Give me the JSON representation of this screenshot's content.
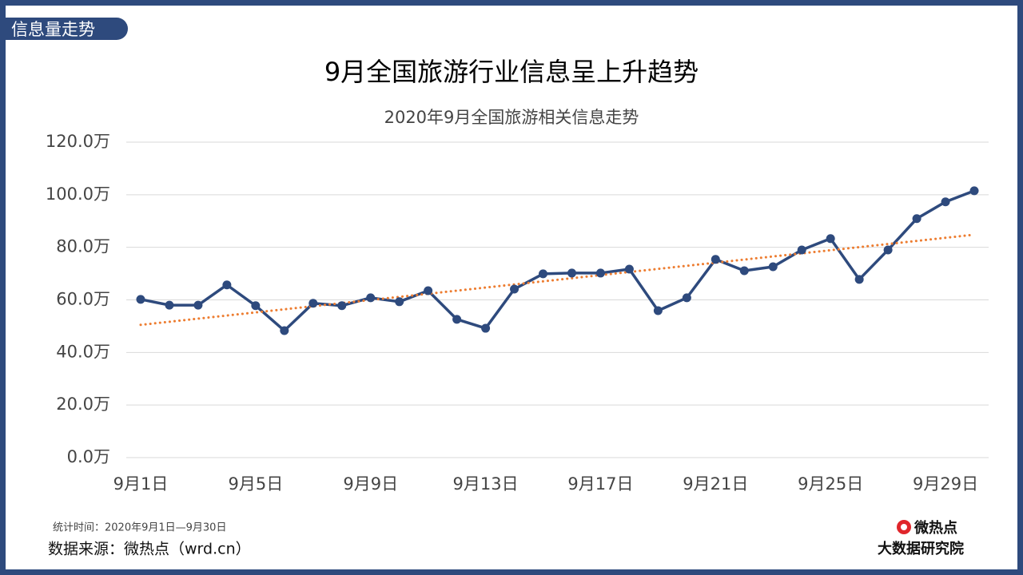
{
  "badge": "信息量走势",
  "footer": {
    "period": "统计时间：2020年9月1日—9月30日",
    "source": "数据来源：微热点（wrd.cn）",
    "logo": "微热点",
    "org": "大数据研究院"
  },
  "chart_data": {
    "type": "line",
    "title": "9月全国旅游行业信息呈上升趋势",
    "subtitle": "2020年9月全国旅游相关信息走势",
    "categories": [
      "9月1日",
      null,
      null,
      null,
      "9月5日",
      null,
      null,
      null,
      "9月9日",
      null,
      null,
      null,
      "9月13日",
      null,
      null,
      null,
      "9月17日",
      null,
      null,
      null,
      "9月21日",
      null,
      null,
      null,
      "9月25日",
      null,
      null,
      null,
      "9月29日",
      null
    ],
    "series": [
      {
        "color": "#2e4a7d",
        "values": [
          60.2,
          58.0,
          58.0,
          65.7,
          57.8,
          48.3,
          58.7,
          57.8,
          60.8,
          59.3,
          63.5,
          52.6,
          49.2,
          64.1,
          69.9,
          70.2,
          70.2,
          71.7,
          55.9,
          60.8,
          75.4,
          71.1,
          72.6,
          79.0,
          83.3,
          67.8,
          79.0,
          90.9,
          97.3,
          101.5
        ]
      }
    ],
    "trend": {
      "color": "#ed7d31",
      "start": 50.5,
      "end": 84.8
    },
    "ylim": [
      0,
      120
    ],
    "yticks": [
      {
        "value": 0,
        "label": "0.0万"
      },
      {
        "value": 20,
        "label": "20.0万"
      },
      {
        "value": 40,
        "label": "40.0万"
      },
      {
        "value": 60,
        "label": "60.0万"
      },
      {
        "value": 80,
        "label": "80.0万"
      },
      {
        "value": 100,
        "label": "100.0万"
      },
      {
        "value": 120,
        "label": "120.0万"
      }
    ],
    "grid": true
  }
}
